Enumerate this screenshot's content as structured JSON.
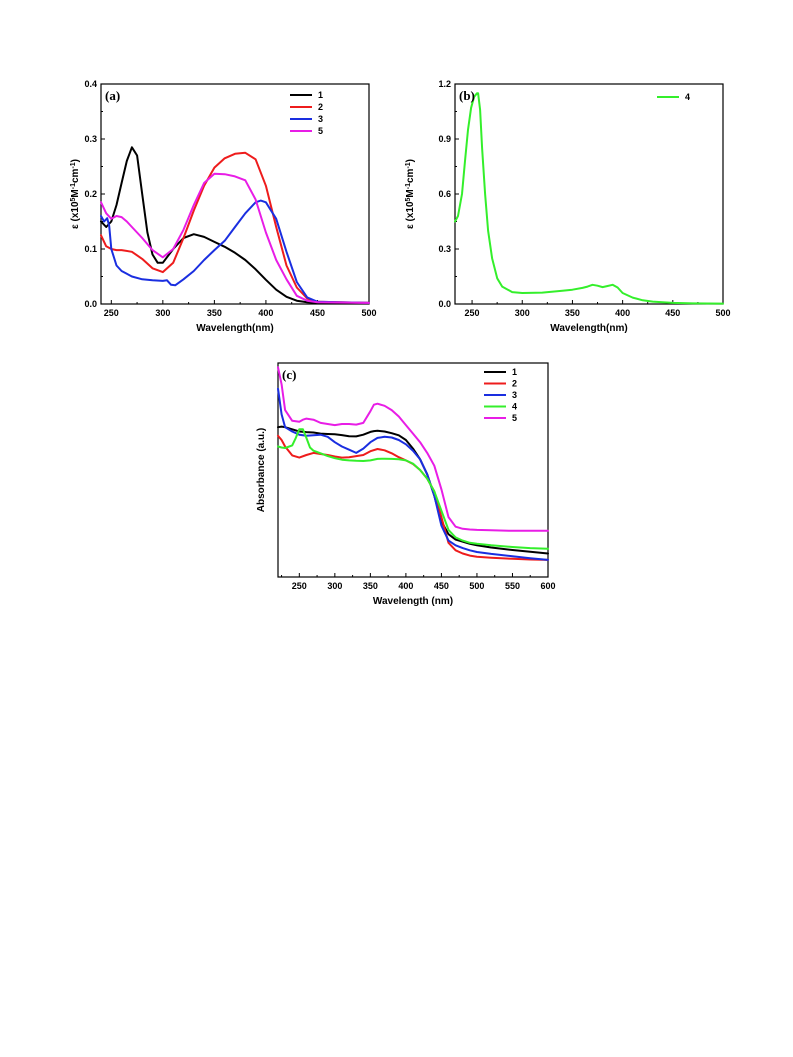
{
  "chart_data": [
    {
      "type": "line",
      "panel_label": "(a)",
      "xlabel": "Wavelength(nm)",
      "ylabel": "ε (x10⁵M⁻¹cm⁻¹)",
      "xlim": [
        240,
        500
      ],
      "ylim": [
        0,
        0.4
      ],
      "xticks": [
        250,
        300,
        350,
        400,
        450,
        500
      ],
      "yticks": [
        0.0,
        0.1,
        0.2,
        0.3,
        0.4
      ],
      "ytick_format": 1,
      "legend_position": "top-right",
      "series": [
        {
          "name": "1",
          "color": "#000000",
          "x": [
            240,
            245,
            250,
            255,
            260,
            265,
            270,
            275,
            280,
            285,
            290,
            295,
            300,
            310,
            320,
            330,
            340,
            350,
            360,
            370,
            380,
            390,
            400,
            410,
            420,
            430,
            440,
            450,
            500
          ],
          "y": [
            0.15,
            0.14,
            0.15,
            0.18,
            0.22,
            0.26,
            0.285,
            0.27,
            0.2,
            0.13,
            0.09,
            0.075,
            0.075,
            0.1,
            0.12,
            0.127,
            0.122,
            0.113,
            0.104,
            0.093,
            0.08,
            0.063,
            0.044,
            0.026,
            0.013,
            0.006,
            0.003,
            0.002,
            0.002
          ]
        },
        {
          "name": "2",
          "color": "#ee1c1c",
          "x": [
            240,
            245,
            250,
            255,
            260,
            270,
            280,
            290,
            300,
            310,
            320,
            330,
            340,
            350,
            360,
            370,
            380,
            390,
            400,
            410,
            420,
            430,
            440,
            450,
            500
          ],
          "y": [
            0.125,
            0.105,
            0.1,
            0.098,
            0.098,
            0.095,
            0.082,
            0.065,
            0.058,
            0.075,
            0.12,
            0.17,
            0.215,
            0.248,
            0.265,
            0.273,
            0.275,
            0.263,
            0.215,
            0.14,
            0.07,
            0.03,
            0.01,
            0.004,
            0.002
          ]
        },
        {
          "name": "3",
          "color": "#1a2ee0",
          "x": [
            240,
            243,
            246,
            248,
            250,
            255,
            260,
            270,
            280,
            290,
            300,
            304,
            308,
            312,
            320,
            330,
            340,
            350,
            360,
            370,
            380,
            390,
            395,
            400,
            410,
            420,
            430,
            440,
            450,
            500
          ],
          "y": [
            0.16,
            0.15,
            0.156,
            0.142,
            0.1,
            0.07,
            0.06,
            0.05,
            0.045,
            0.043,
            0.042,
            0.043,
            0.035,
            0.034,
            0.045,
            0.06,
            0.08,
            0.098,
            0.115,
            0.14,
            0.165,
            0.185,
            0.188,
            0.185,
            0.155,
            0.095,
            0.04,
            0.012,
            0.004,
            0.002
          ]
        },
        {
          "name": "5",
          "color": "#e81de6",
          "x": [
            240,
            245,
            250,
            255,
            260,
            265,
            270,
            280,
            290,
            300,
            310,
            320,
            330,
            340,
            350,
            360,
            370,
            380,
            390,
            400,
            410,
            420,
            430,
            440,
            450,
            500
          ],
          "y": [
            0.185,
            0.165,
            0.155,
            0.16,
            0.158,
            0.15,
            0.14,
            0.12,
            0.098,
            0.085,
            0.1,
            0.135,
            0.18,
            0.22,
            0.237,
            0.236,
            0.232,
            0.225,
            0.19,
            0.13,
            0.08,
            0.045,
            0.015,
            0.006,
            0.003,
            0.002
          ]
        }
      ]
    },
    {
      "type": "line",
      "panel_label": "(b)",
      "xlabel": "Wavelength(nm)",
      "ylabel": "ε (x10⁵M⁻¹cm⁻¹)",
      "xlim": [
        233,
        500
      ],
      "ylim": [
        0,
        1.2
      ],
      "xticks": [
        250,
        300,
        350,
        400,
        450,
        500
      ],
      "yticks": [
        0.0,
        0.3,
        0.6,
        0.9,
        1.2
      ],
      "ytick_format": 1,
      "legend_position": "top-right",
      "series": [
        {
          "name": "4",
          "color": "#34ef2b",
          "x": [
            233,
            236,
            240,
            243,
            246,
            249,
            252,
            255,
            256,
            258,
            260,
            263,
            266,
            270,
            275,
            280,
            290,
            300,
            320,
            340,
            350,
            360,
            365,
            370,
            375,
            380,
            385,
            390,
            395,
            400,
            410,
            420,
            430,
            450,
            470,
            500
          ],
          "y": [
            0.45,
            0.48,
            0.6,
            0.78,
            0.95,
            1.07,
            1.13,
            1.15,
            1.15,
            1.06,
            0.85,
            0.6,
            0.4,
            0.25,
            0.14,
            0.095,
            0.065,
            0.06,
            0.062,
            0.072,
            0.078,
            0.088,
            0.095,
            0.105,
            0.1,
            0.092,
            0.098,
            0.105,
            0.09,
            0.06,
            0.035,
            0.02,
            0.013,
            0.006,
            0.003,
            0.002
          ]
        }
      ]
    },
    {
      "type": "line",
      "panel_label": "(c)",
      "xlabel": "Wavelength (nm)",
      "ylabel": "Absorbance (a.u.)",
      "xlim": [
        220,
        600
      ],
      "ylim": [
        0,
        1.0
      ],
      "xticks": [
        250,
        300,
        350,
        400,
        450,
        500,
        550,
        600
      ],
      "yticks": [],
      "legend_position": "top-right",
      "series": [
        {
          "name": "1",
          "color": "#000000",
          "x": [
            220,
            225,
            230,
            240,
            250,
            260,
            270,
            280,
            290,
            300,
            310,
            320,
            330,
            340,
            350,
            355,
            360,
            370,
            380,
            390,
            400,
            410,
            420,
            430,
            440,
            450,
            460,
            470,
            480,
            490,
            500,
            520,
            550,
            575,
            600
          ],
          "y": [
            0.7,
            0.703,
            0.7,
            0.69,
            0.68,
            0.677,
            0.675,
            0.67,
            0.668,
            0.667,
            0.663,
            0.658,
            0.657,
            0.665,
            0.678,
            0.682,
            0.683,
            0.68,
            0.672,
            0.662,
            0.64,
            0.6,
            0.55,
            0.48,
            0.38,
            0.26,
            0.2,
            0.175,
            0.165,
            0.155,
            0.148,
            0.138,
            0.126,
            0.118,
            0.11
          ]
        },
        {
          "name": "2",
          "color": "#ee1c1c",
          "x": [
            220,
            225,
            230,
            240,
            250,
            260,
            270,
            280,
            290,
            300,
            310,
            320,
            330,
            340,
            350,
            360,
            370,
            380,
            390,
            400,
            410,
            420,
            430,
            440,
            450,
            460,
            470,
            480,
            490,
            500,
            520,
            550,
            575,
            600
          ],
          "y": [
            0.66,
            0.64,
            0.61,
            0.568,
            0.558,
            0.57,
            0.58,
            0.575,
            0.57,
            0.563,
            0.558,
            0.56,
            0.565,
            0.57,
            0.588,
            0.598,
            0.592,
            0.578,
            0.56,
            0.545,
            0.528,
            0.5,
            0.46,
            0.4,
            0.28,
            0.16,
            0.125,
            0.11,
            0.1,
            0.095,
            0.09,
            0.085,
            0.082,
            0.08
          ]
        },
        {
          "name": "3",
          "color": "#1a2ee0",
          "x": [
            220,
            225,
            230,
            240,
            250,
            260,
            270,
            280,
            290,
            300,
            310,
            320,
            330,
            340,
            350,
            360,
            370,
            380,
            390,
            400,
            410,
            420,
            430,
            440,
            450,
            460,
            470,
            480,
            490,
            500,
            520,
            550,
            575,
            600
          ],
          "y": [
            0.88,
            0.76,
            0.7,
            0.68,
            0.665,
            0.66,
            0.662,
            0.665,
            0.655,
            0.63,
            0.61,
            0.595,
            0.58,
            0.6,
            0.63,
            0.65,
            0.655,
            0.652,
            0.64,
            0.62,
            0.59,
            0.55,
            0.48,
            0.38,
            0.24,
            0.17,
            0.148,
            0.135,
            0.125,
            0.117,
            0.108,
            0.097,
            0.088,
            0.08
          ]
        },
        {
          "name": "4",
          "color": "#34ef2b",
          "x": [
            220,
            225,
            230,
            240,
            245,
            250,
            255,
            260,
            265,
            270,
            280,
            290,
            300,
            310,
            320,
            330,
            340,
            350,
            360,
            370,
            380,
            390,
            400,
            410,
            420,
            430,
            440,
            450,
            460,
            470,
            480,
            490,
            500,
            520,
            550,
            575,
            600
          ],
          "y": [
            0.61,
            0.605,
            0.603,
            0.615,
            0.65,
            0.69,
            0.69,
            0.65,
            0.605,
            0.59,
            0.578,
            0.565,
            0.555,
            0.548,
            0.545,
            0.543,
            0.542,
            0.545,
            0.552,
            0.553,
            0.552,
            0.55,
            0.545,
            0.53,
            0.5,
            0.46,
            0.4,
            0.31,
            0.22,
            0.185,
            0.17,
            0.16,
            0.155,
            0.148,
            0.14,
            0.135,
            0.132
          ]
        },
        {
          "name": "5",
          "color": "#e81de6",
          "x": [
            220,
            225,
            230,
            240,
            250,
            255,
            260,
            270,
            280,
            290,
            300,
            310,
            320,
            330,
            340,
            350,
            355,
            360,
            370,
            380,
            390,
            400,
            410,
            420,
            430,
            440,
            450,
            460,
            470,
            480,
            490,
            500,
            520,
            550,
            575,
            600
          ],
          "y": [
            0.98,
            0.9,
            0.78,
            0.73,
            0.725,
            0.735,
            0.74,
            0.735,
            0.72,
            0.715,
            0.71,
            0.715,
            0.715,
            0.712,
            0.72,
            0.775,
            0.805,
            0.81,
            0.8,
            0.78,
            0.75,
            0.71,
            0.67,
            0.63,
            0.58,
            0.52,
            0.41,
            0.28,
            0.235,
            0.225,
            0.222,
            0.22,
            0.218,
            0.216,
            0.216,
            0.216
          ]
        }
      ]
    }
  ]
}
